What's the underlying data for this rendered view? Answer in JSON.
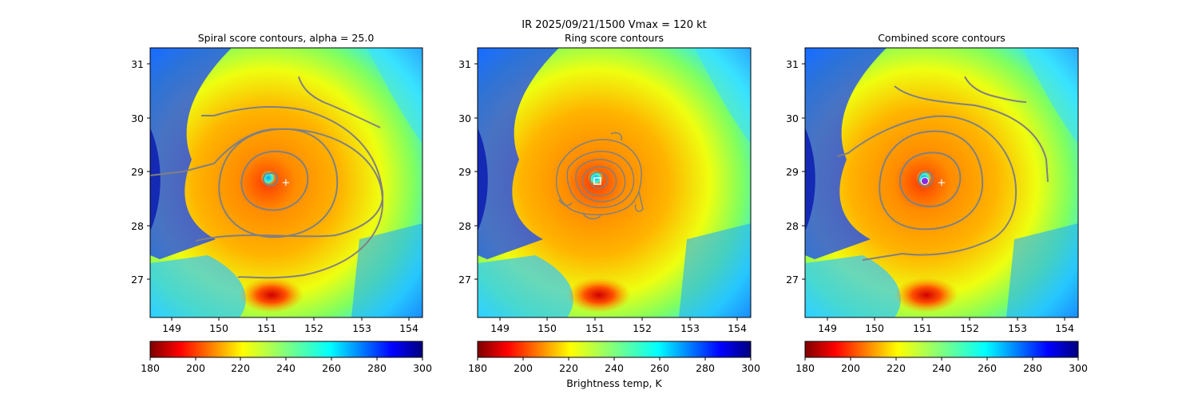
{
  "suptitle": "IR  2025/09/21/1500    Vmax = 120 kt",
  "colorbar_label": "Brightness temp, K",
  "chart_data": [
    {
      "type": "heatmap",
      "title": "Spiral score contours, alpha = 25.0",
      "xlabel": "",
      "ylabel": "",
      "xlim": [
        148.5,
        154.25
      ],
      "ylim": [
        26.3,
        31.3
      ],
      "xticks": [
        "149",
        "150",
        "151",
        "152",
        "153",
        "154"
      ],
      "yticks": [
        "27",
        "28",
        "29",
        "30",
        "31"
      ],
      "colormap": "jet_r",
      "color_range": [
        180,
        300
      ],
      "colorbar_ticks": [
        "180",
        "200",
        "220",
        "240",
        "260",
        "280",
        "300"
      ],
      "center_marker": {
        "symbol": "+",
        "lon": 151.4,
        "lat": 28.8
      },
      "contour_color": "#808080"
    },
    {
      "type": "heatmap",
      "title": "Ring score contours",
      "xlabel": "",
      "ylabel": "",
      "xlim": [
        148.5,
        154.25
      ],
      "ylim": [
        26.3,
        31.3
      ],
      "xticks": [
        "149",
        "150",
        "151",
        "152",
        "153",
        "154"
      ],
      "yticks": [
        "27",
        "28",
        "29",
        "30",
        "31"
      ],
      "colormap": "jet_r",
      "color_range": [
        180,
        300
      ],
      "colorbar_ticks": [
        "180",
        "200",
        "220",
        "240",
        "260",
        "280",
        "300"
      ],
      "center_marker": {
        "symbol": "square",
        "lon": 151.05,
        "lat": 28.82
      },
      "contour_color": "#808080"
    },
    {
      "type": "heatmap",
      "title": "Combined score contours",
      "xlabel": "",
      "ylabel": "",
      "xlim": [
        148.5,
        154.25
      ],
      "ylim": [
        26.3,
        31.3
      ],
      "xticks": [
        "149",
        "150",
        "151",
        "152",
        "153",
        "154"
      ],
      "yticks": [
        "27",
        "28",
        "29",
        "30",
        "31"
      ],
      "colormap": "jet_r",
      "color_range": [
        180,
        300
      ],
      "colorbar_ticks": [
        "180",
        "200",
        "220",
        "240",
        "260",
        "280",
        "300"
      ],
      "center_marker": {
        "symbol": "+",
        "lon": 151.4,
        "lat": 28.8
      },
      "best_marker": {
        "symbol": "circle",
        "lon": 151.05,
        "lat": 28.82,
        "color": "#8a2be2"
      },
      "contour_color": "#808080"
    }
  ]
}
